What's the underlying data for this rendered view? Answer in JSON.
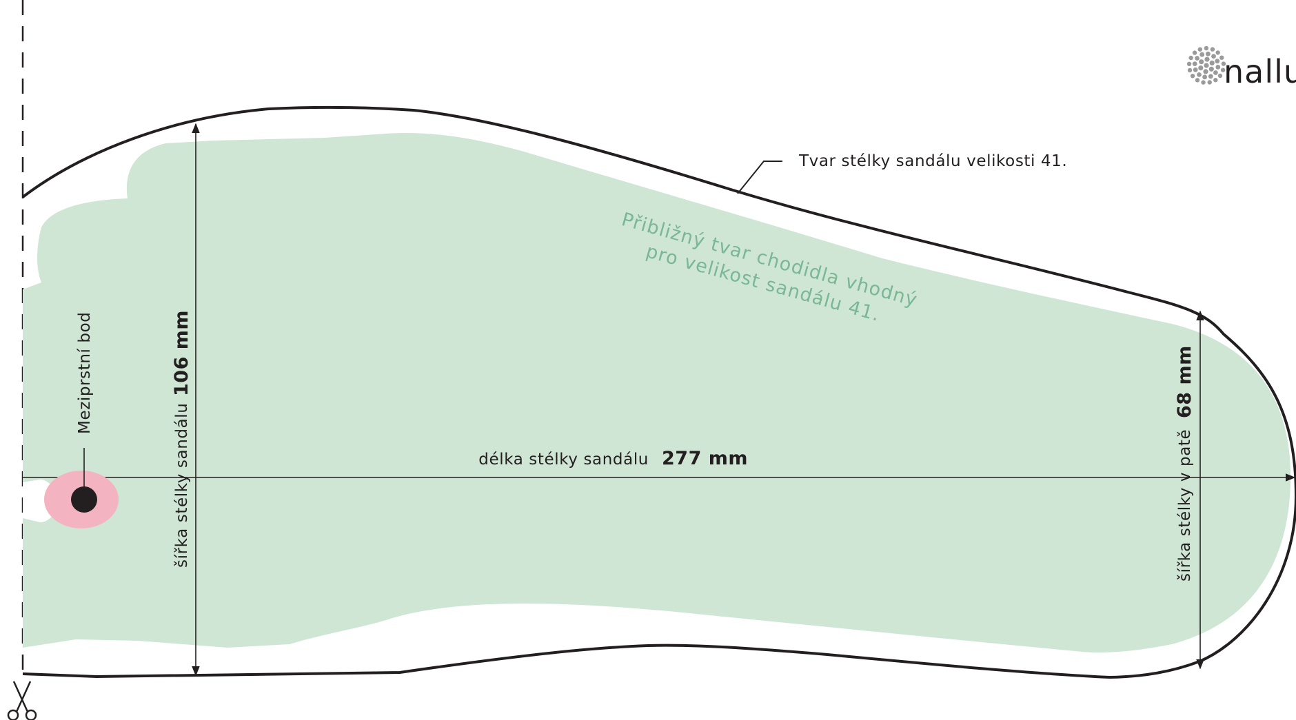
{
  "brand": {
    "name": "nallu"
  },
  "outline_label": "Tvar stélky sandálu velikosti 41.",
  "foot_label": {
    "line1": "Přibližný tvar chodidla vhodný",
    "line2": "pro velikost sandálu 41."
  },
  "toe_point_label": "Meziprstní bod",
  "length": {
    "label": "délka stélky sandálu",
    "value": "277 mm"
  },
  "width_front": {
    "label": "šířka stélky sandálu",
    "value": "106 mm"
  },
  "width_heel": {
    "label": "šířka stélky v patě",
    "value": "68 mm"
  },
  "colors": {
    "outline": "#231f20",
    "foot_fill": "#cfe6d5",
    "foot_text": "#79b795",
    "toe_marker_outer": "#f4b3c0",
    "toe_marker_inner": "#231f20",
    "logo_dots": "#9a9a9a"
  },
  "icons": {
    "cut_line": "scissors-icon",
    "logo": "dot-circle-logo-icon"
  }
}
